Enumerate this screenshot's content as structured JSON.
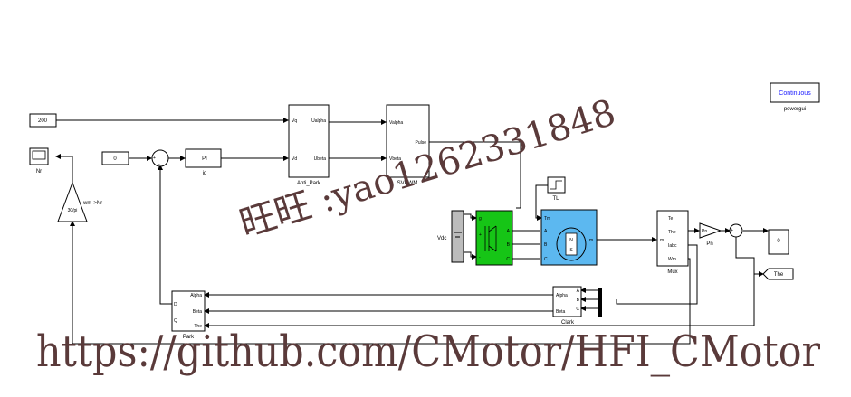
{
  "blocks": {
    "speed_ref": "200",
    "id_ref": "0",
    "pi_label": "PI",
    "pi_name": "id",
    "scope_name": "Nr",
    "gain_value": "30/pi",
    "gain_name": "wm->Nr",
    "anti_park": {
      "name": "Anti_Park",
      "in_q": "Vq",
      "in_d": "Vd",
      "out_alpha": "Ualpha",
      "out_beta": "Ubeta"
    },
    "svpwm": {
      "name": "SVPWM",
      "in_alpha": "Valpha",
      "in_beta": "Vbeta",
      "out": "Pulse"
    },
    "step_name": "TL",
    "vdc_name": "Vdc",
    "motor": {
      "in_tm": "Tm",
      "port_a": "A",
      "port_b": "B",
      "port_c": "C",
      "out_m": "m",
      "pole_n": "N",
      "pole_s": "S"
    },
    "inverter": {
      "port_g": "g",
      "port_plus": "+",
      "port_minus": "-",
      "port_a": "A",
      "port_b": "B",
      "port_c": "C"
    },
    "mux": {
      "name": "Mux",
      "in": "m",
      "out_te": "Te",
      "out_the": "The",
      "out_iabc": "Iabc",
      "out_wm": "Wm"
    },
    "pn_gain": "Pn",
    "display_value": "0",
    "goto_the": "The",
    "park": {
      "name": "Park",
      "in_alpha": "Alpha",
      "in_beta": "Beta",
      "in_the": "The",
      "out_d": "D",
      "out_q": "Q"
    },
    "clark": {
      "name": "Clark",
      "in_a": "A",
      "in_b": "B",
      "in_c": "C",
      "out_alpha": "Alpha",
      "out_beta": "Beta"
    },
    "powergui": {
      "mode": "Continuous",
      "name": "powergui"
    }
  },
  "watermark": {
    "contact": "旺旺 :yao1262331848",
    "url": "https://github.com/CMotor/HFI_CMotor"
  },
  "colors": {
    "inverter_fill": "#16c516",
    "motor_fill": "#5cb8f0",
    "powergui_text": "#1a1aff"
  }
}
